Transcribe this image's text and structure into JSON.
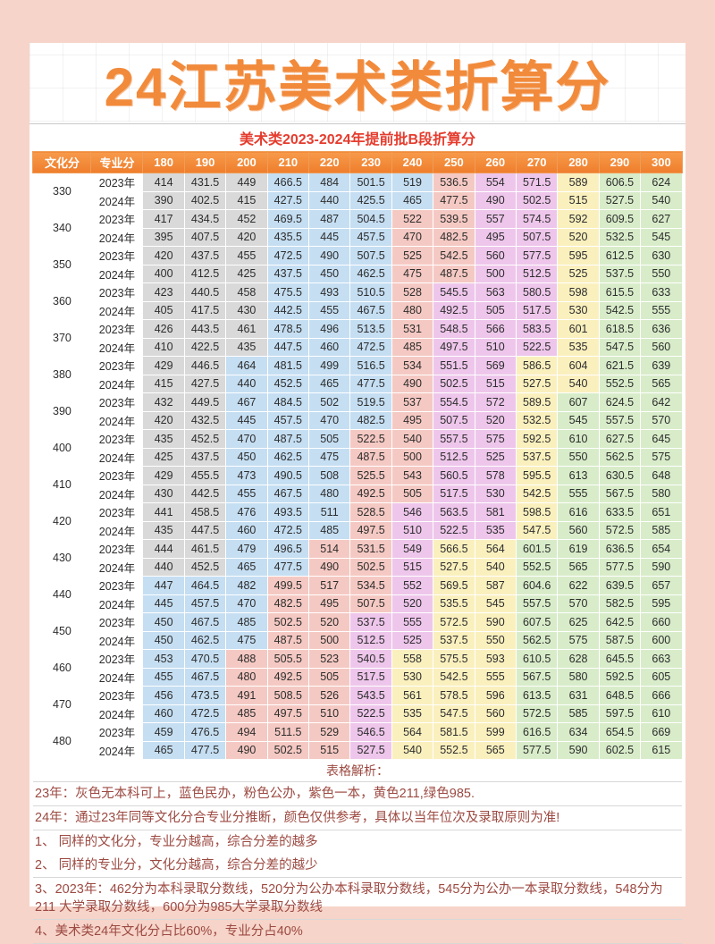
{
  "page": {
    "title": "24江苏美术类折算分",
    "subtitle": "美术类2023-2024年提前批B段折算分"
  },
  "theme": {
    "page_bg": "#f6d4c9",
    "title_color": "#f18a3b",
    "subtitle_color": "#e53c2e",
    "header_bg": "#ee7d2c",
    "header_text": "#ffffff",
    "note_color": "#9c4a42"
  },
  "cell_colors": {
    "G": "#d9d9d9",
    "B": "#c5def2",
    "P": "#f5c9c3",
    "U": "#eec6eb",
    "Y": "#faf0be",
    "N": "#d8ecc9"
  },
  "color_meaning": {
    "G": "无本科可上",
    "B": "民办",
    "P": "公办",
    "U": "一本",
    "Y": "211",
    "N": "985"
  },
  "table": {
    "col_headers": [
      "文化分",
      "专业分",
      "180",
      "190",
      "200",
      "210",
      "220",
      "230",
      "240",
      "250",
      "260",
      "270",
      "280",
      "290",
      "300"
    ],
    "groups": [
      {
        "culture": "330",
        "bands": [
          "G",
          "G",
          "G",
          "B",
          "B",
          "B",
          "B",
          "P",
          "U",
          "U",
          "Y",
          "N",
          "N"
        ],
        "rows": [
          {
            "year": "2023年",
            "values": [
              "414",
              "431.5",
              "449",
              "466.5",
              "484",
              "501.5",
              "519",
              "536.5",
              "554",
              "571.5",
              "589",
              "606.5",
              "624"
            ]
          },
          {
            "year": "2024年",
            "values": [
              "390",
              "402.5",
              "415",
              "427.5",
              "440",
              "425.5",
              "465",
              "477.5",
              "490",
              "502.5",
              "515",
              "527.5",
              "540"
            ]
          }
        ]
      },
      {
        "culture": "340",
        "bands": [
          "G",
          "G",
          "G",
          "B",
          "B",
          "B",
          "P",
          "P",
          "U",
          "U",
          "Y",
          "N",
          "N"
        ],
        "rows": [
          {
            "year": "2023年",
            "values": [
              "417",
              "434.5",
              "452",
              "469.5",
              "487",
              "504.5",
              "522",
              "539.5",
              "557",
              "574.5",
              "592",
              "609.5",
              "627"
            ]
          },
          {
            "year": "2024年",
            "values": [
              "395",
              "407.5",
              "420",
              "435.5",
              "445",
              "457.5",
              "470",
              "482.5",
              "495",
              "507.5",
              "520",
              "532.5",
              "545"
            ]
          }
        ]
      },
      {
        "culture": "350",
        "bands": [
          "G",
          "G",
          "G",
          "B",
          "B",
          "B",
          "P",
          "P",
          "U",
          "U",
          "Y",
          "N",
          "N"
        ],
        "rows": [
          {
            "year": "2023年",
            "values": [
              "420",
              "437.5",
              "455",
              "472.5",
              "490",
              "507.5",
              "525",
              "542.5",
              "560",
              "577.5",
              "595",
              "612.5",
              "630"
            ]
          },
          {
            "year": "2024年",
            "values": [
              "400",
              "412.5",
              "425",
              "437.5",
              "450",
              "462.5",
              "475",
              "487.5",
              "500",
              "512.5",
              "525",
              "537.5",
              "550"
            ]
          }
        ]
      },
      {
        "culture": "360",
        "bands": [
          "G",
          "G",
          "G",
          "B",
          "B",
          "B",
          "P",
          "U",
          "U",
          "U",
          "Y",
          "N",
          "N"
        ],
        "rows": [
          {
            "year": "2023年",
            "values": [
              "423",
              "440.5",
              "458",
              "475.5",
              "493",
              "510.5",
              "528",
              "545.5",
              "563",
              "580.5",
              "598",
              "615.5",
              "633"
            ]
          },
          {
            "year": "2024年",
            "values": [
              "405",
              "417.5",
              "430",
              "442.5",
              "455",
              "467.5",
              "480",
              "492.5",
              "505",
              "517.5",
              "530",
              "542.5",
              "555"
            ]
          }
        ]
      },
      {
        "culture": "370",
        "bands": [
          "G",
          "G",
          "G",
          "B",
          "B",
          "B",
          "P",
          "U",
          "U",
          "U",
          "Y",
          "N",
          "N"
        ],
        "rows": [
          {
            "year": "2023年",
            "values": [
              "426",
              "443.5",
              "461",
              "478.5",
              "496",
              "513.5",
              "531",
              "548.5",
              "566",
              "583.5",
              "601",
              "618.5",
              "636"
            ]
          },
          {
            "year": "2024年",
            "values": [
              "410",
              "422.5",
              "435",
              "447.5",
              "460",
              "472.5",
              "485",
              "497.5",
              "510",
              "522.5",
              "535",
              "547.5",
              "560"
            ]
          }
        ]
      },
      {
        "culture": "380",
        "bands": [
          "G",
          "G",
          "B",
          "B",
          "B",
          "B",
          "P",
          "U",
          "U",
          "Y",
          "Y",
          "N",
          "N"
        ],
        "rows": [
          {
            "year": "2023年",
            "values": [
              "429",
              "446.5",
              "464",
              "481.5",
              "499",
              "516.5",
              "534",
              "551.5",
              "569",
              "586.5",
              "604",
              "621.5",
              "639"
            ]
          },
          {
            "year": "2024年",
            "values": [
              "415",
              "427.5",
              "440",
              "452.5",
              "465",
              "477.5",
              "490",
              "502.5",
              "515",
              "527.5",
              "540",
              "552.5",
              "565"
            ]
          }
        ]
      },
      {
        "culture": "390",
        "bands": [
          "G",
          "G",
          "B",
          "B",
          "B",
          "B",
          "P",
          "U",
          "U",
          "Y",
          "N",
          "N",
          "N"
        ],
        "rows": [
          {
            "year": "2023年",
            "values": [
              "432",
              "449.5",
              "467",
              "484.5",
              "502",
              "519.5",
              "537",
              "554.5",
              "572",
              "589.5",
              "607",
              "624.5",
              "642"
            ]
          },
          {
            "year": "2024年",
            "values": [
              "420",
              "432.5",
              "445",
              "457.5",
              "470",
              "482.5",
              "495",
              "507.5",
              "520",
              "532.5",
              "545",
              "557.5",
              "570"
            ]
          }
        ]
      },
      {
        "culture": "400",
        "bands": [
          "G",
          "G",
          "B",
          "B",
          "B",
          "P",
          "P",
          "U",
          "U",
          "Y",
          "N",
          "N",
          "N"
        ],
        "rows": [
          {
            "year": "2023年",
            "values": [
              "435",
              "452.5",
              "470",
              "487.5",
              "505",
              "522.5",
              "540",
              "557.5",
              "575",
              "592.5",
              "610",
              "627.5",
              "645"
            ]
          },
          {
            "year": "2024年",
            "values": [
              "425",
              "437.5",
              "450",
              "462.5",
              "475",
              "487.5",
              "500",
              "512.5",
              "525",
              "537.5",
              "550",
              "562.5",
              "575"
            ]
          }
        ]
      },
      {
        "culture": "410",
        "bands": [
          "G",
          "G",
          "B",
          "B",
          "B",
          "P",
          "P",
          "U",
          "U",
          "Y",
          "N",
          "N",
          "N"
        ],
        "rows": [
          {
            "year": "2023年",
            "values": [
              "429",
              "455.5",
              "473",
              "490.5",
              "508",
              "525.5",
              "543",
              "560.5",
              "578",
              "595.5",
              "613",
              "630.5",
              "648"
            ]
          },
          {
            "year": "2024年",
            "values": [
              "430",
              "442.5",
              "455",
              "467.5",
              "480",
              "492.5",
              "505",
              "517.5",
              "530",
              "542.5",
              "555",
              "567.5",
              "580"
            ]
          }
        ]
      },
      {
        "culture": "420",
        "bands": [
          "G",
          "G",
          "B",
          "B",
          "B",
          "P",
          "U",
          "U",
          "U",
          "Y",
          "N",
          "N",
          "N"
        ],
        "rows": [
          {
            "year": "2023年",
            "values": [
              "441",
              "458.5",
              "476",
              "493.5",
              "511",
              "528.5",
              "546",
              "563.5",
              "581",
              "598.5",
              "616",
              "633.5",
              "651"
            ]
          },
          {
            "year": "2024年",
            "values": [
              "435",
              "447.5",
              "460",
              "472.5",
              "485",
              "497.5",
              "510",
              "522.5",
              "535",
              "547.5",
              "560",
              "572.5",
              "585"
            ]
          }
        ]
      },
      {
        "culture": "430",
        "bands": [
          "G",
          "G",
          "B",
          "B",
          "P",
          "P",
          "U",
          "Y",
          "Y",
          "N",
          "N",
          "N",
          "N"
        ],
        "rows": [
          {
            "year": "2023年",
            "values": [
              "444",
              "461.5",
              "479",
              "496.5",
              "514",
              "531.5",
              "549",
              "566.5",
              "564",
              "601.5",
              "619",
              "636.5",
              "654"
            ]
          },
          {
            "year": "2024年",
            "values": [
              "440",
              "452.5",
              "465",
              "477.5",
              "490",
              "502.5",
              "515",
              "527.5",
              "540",
              "552.5",
              "565",
              "577.5",
              "590"
            ]
          }
        ]
      },
      {
        "culture": "440",
        "bands": [
          "B",
          "B",
          "B",
          "P",
          "P",
          "P",
          "U",
          "Y",
          "Y",
          "N",
          "N",
          "N",
          "N"
        ],
        "rows": [
          {
            "year": "2023年",
            "values": [
              "447",
              "464.5",
              "482",
              "499.5",
              "517",
              "534.5",
              "552",
              "569.5",
              "587",
              "604.6",
              "622",
              "639.5",
              "657"
            ]
          },
          {
            "year": "2024年",
            "values": [
              "445",
              "457.5",
              "470",
              "482.5",
              "495",
              "507.5",
              "520",
              "535.5",
              "545",
              "557.5",
              "570",
              "582.5",
              "595"
            ]
          }
        ]
      },
      {
        "culture": "450",
        "bands": [
          "B",
          "B",
          "B",
          "P",
          "P",
          "U",
          "U",
          "Y",
          "Y",
          "N",
          "N",
          "N",
          "N"
        ],
        "rows": [
          {
            "year": "2023年",
            "values": [
              "450",
              "467.5",
              "485",
              "502.5",
              "520",
              "537.5",
              "555",
              "572.5",
              "590",
              "607.5",
              "625",
              "642.5",
              "660"
            ]
          },
          {
            "year": "2024年",
            "values": [
              "450",
              "462.5",
              "475",
              "487.5",
              "500",
              "512.5",
              "525",
              "537.5",
              "550",
              "562.5",
              "575",
              "587.5",
              "600"
            ]
          }
        ]
      },
      {
        "culture": "460",
        "bands": [
          "B",
          "B",
          "P",
          "P",
          "P",
          "U",
          "Y",
          "Y",
          "Y",
          "N",
          "N",
          "N",
          "N"
        ],
        "rows": [
          {
            "year": "2023年",
            "values": [
              "453",
              "470.5",
              "488",
              "505.5",
              "523",
              "540.5",
              "558",
              "575.5",
              "593",
              "610.5",
              "628",
              "645.5",
              "663"
            ]
          },
          {
            "year": "2024年",
            "values": [
              "455",
              "467.5",
              "480",
              "492.5",
              "505",
              "517.5",
              "530",
              "542.5",
              "555",
              "567.5",
              "580",
              "592.5",
              "605"
            ]
          }
        ]
      },
      {
        "culture": "470",
        "bands": [
          "B",
          "B",
          "P",
          "P",
          "P",
          "U",
          "Y",
          "Y",
          "Y",
          "N",
          "N",
          "N",
          "N"
        ],
        "rows": [
          {
            "year": "2023年",
            "values": [
              "456",
              "473.5",
              "491",
              "508.5",
              "526",
              "543.5",
              "561",
              "578.5",
              "596",
              "613.5",
              "631",
              "648.5",
              "666"
            ]
          },
          {
            "year": "2024年",
            "values": [
              "460",
              "472.5",
              "485",
              "497.5",
              "510",
              "522.5",
              "535",
              "547.5",
              "560",
              "572.5",
              "585",
              "597.5",
              "610"
            ]
          }
        ]
      },
      {
        "culture": "480",
        "bands": [
          "B",
          "B",
          "P",
          "P",
          "P",
          "U",
          "Y",
          "Y",
          "Y",
          "N",
          "N",
          "N",
          "N"
        ],
        "rows": [
          {
            "year": "2023年",
            "values": [
              "459",
              "476.5",
              "494",
              "511.5",
              "529",
              "546.5",
              "564",
              "581.5",
              "599",
              "616.5",
              "634",
              "654.5",
              "669"
            ]
          },
          {
            "year": "2024年",
            "values": [
              "465",
              "477.5",
              "490",
              "502.5",
              "515",
              "527.5",
              "540",
              "552.5",
              "565",
              "577.5",
              "590",
              "602.5",
              "615"
            ]
          }
        ]
      }
    ]
  },
  "notes": {
    "heading": "表格解析：",
    "lines": [
      "23年：灰色无本科可上，蓝色民办，粉色公办，紫色一本，黄色211,绿色985.",
      "24年：通过23年同等文化分合专业分推断，颜色仅供参考，具体以当年位次及录取原则为准!",
      "1、 同样的文化分，专业分越高，综合分差的越多",
      "2、 同样的专业分，文化分越高，综合分差的越少",
      "3、2023年：462分为本科录取分数线，520分为公办本科录取分数线，545分为公办一本录取分数线，548分为211 大学录取分数线，600分为985大学录取分数线",
      "4、美术类24年文化分占比60%，专业分占40%"
    ]
  }
}
